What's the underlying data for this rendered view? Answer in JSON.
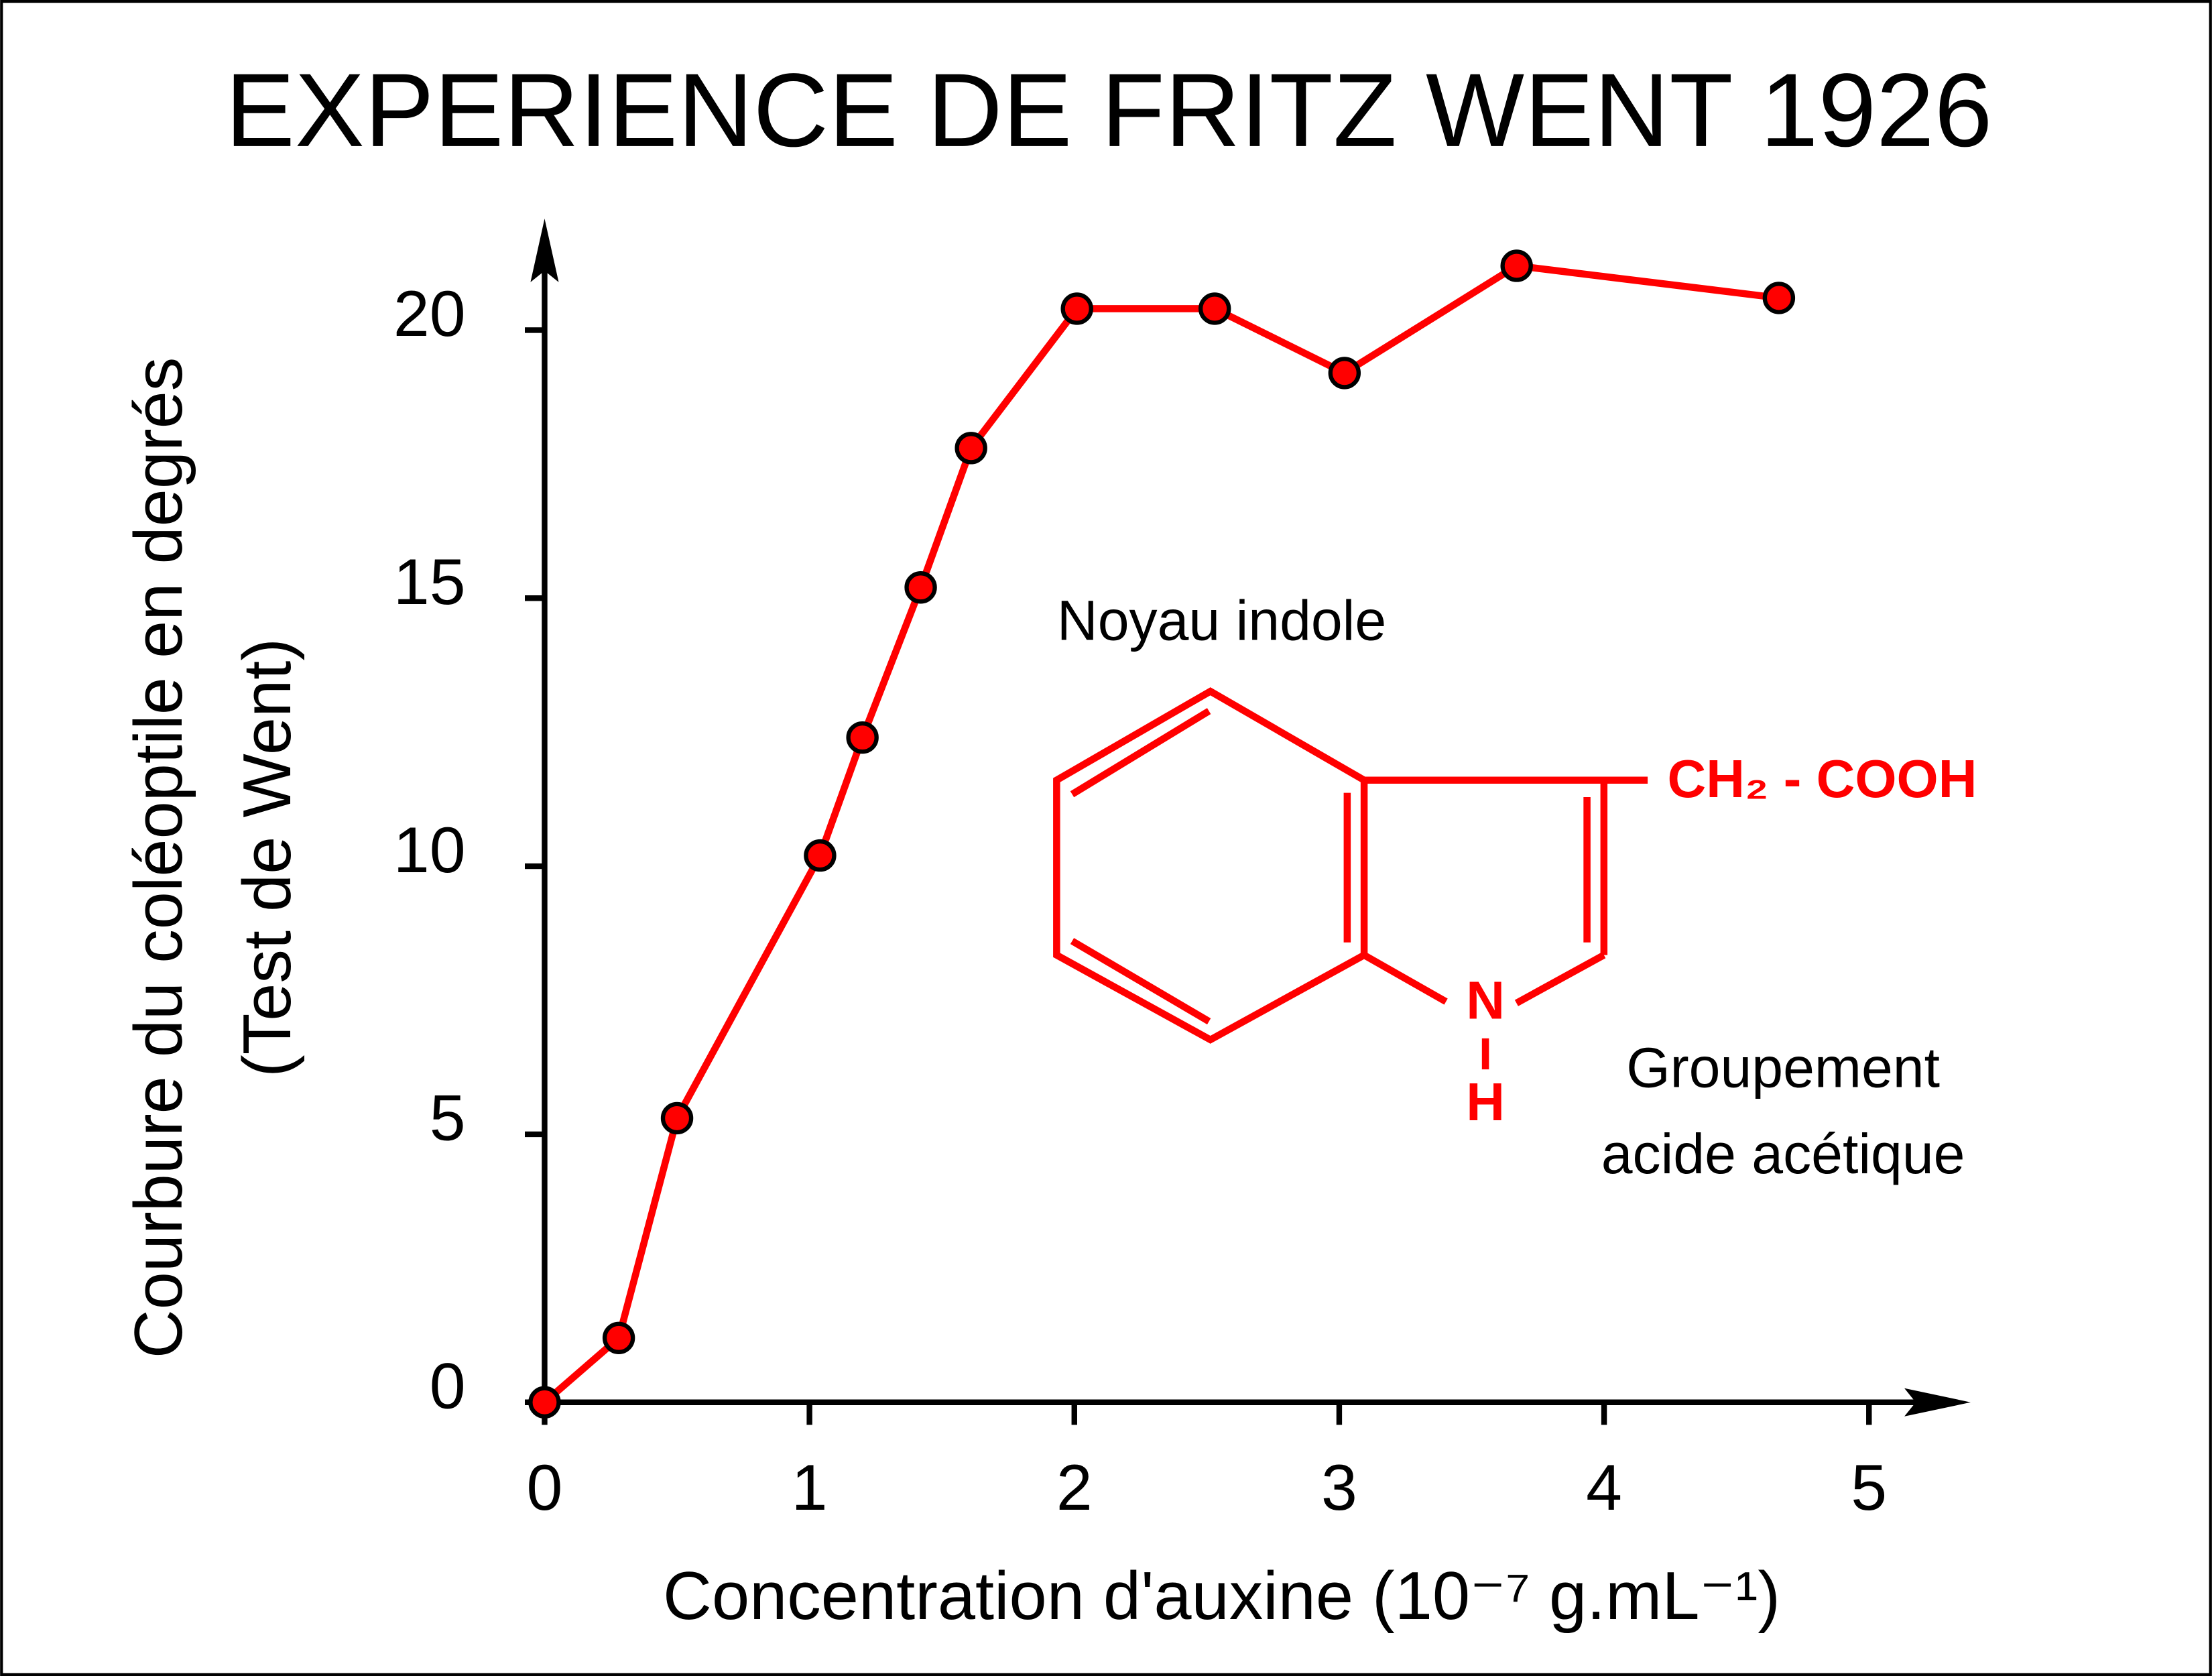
{
  "chart_data": {
    "type": "line",
    "title": "EXPERIENCE DE FRITZ WENT 1926",
    "xlabel": "Concentration d'auxine (10⁻⁷ g.mL⁻¹)",
    "ylabel": [
      "Courbure du coléoptile en degrés",
      "(Test de Went)"
    ],
    "x": [
      0,
      0.28,
      0.5,
      1.04,
      1.2,
      1.42,
      1.61,
      2.01,
      2.53,
      3.02,
      3.67,
      4.66
    ],
    "series": [
      {
        "color": "#ff0000",
        "values": [
          0,
          1.2,
          5.3,
          10.2,
          12.4,
          15.2,
          17.8,
          20.4,
          20.4,
          19.2,
          21.2,
          20.6
        ]
      }
    ],
    "xlim": [
      0,
      5.4
    ],
    "ylim": [
      0,
      22
    ],
    "xticks": [
      0,
      1,
      2,
      3,
      4,
      5
    ],
    "yticks": [
      0,
      5,
      10,
      15,
      20
    ],
    "annotations": [
      "Noyau indole",
      "CH₂ - COOH",
      "N",
      "H",
      "Groupement",
      "acide acétique"
    ]
  }
}
